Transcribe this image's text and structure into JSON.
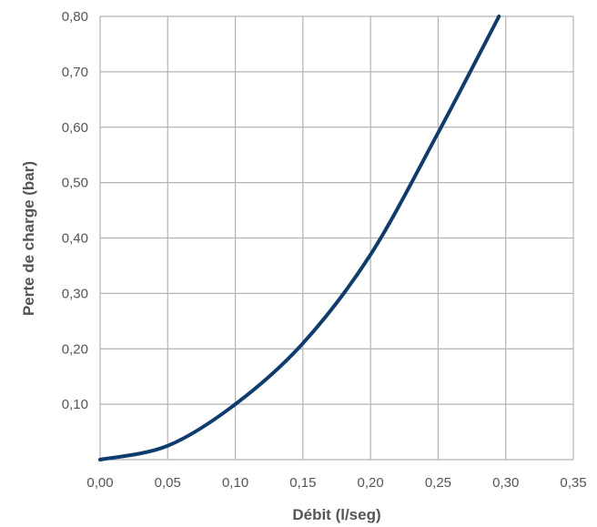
{
  "chart_data": {
    "type": "line",
    "title": "",
    "xlabel": "Débit (l/seg)",
    "ylabel": "Perte de charge (bar)",
    "xlim": [
      0,
      0.35
    ],
    "ylim": [
      0,
      0.8
    ],
    "x_ticks": [
      "0,00",
      "0,05",
      "0,10",
      "0,15",
      "0,20",
      "0,25",
      "0,30",
      "0,35"
    ],
    "y_ticks": [
      "0,10",
      "0,20",
      "0,30",
      "0,40",
      "0,50",
      "0,60",
      "0,70",
      "0,80"
    ],
    "grid": true,
    "series": [
      {
        "color": "#0d3d6e",
        "x": [
          0.0,
          0.05,
          0.1,
          0.15,
          0.2,
          0.25,
          0.295
        ],
        "y": [
          0.0,
          0.025,
          0.1,
          0.21,
          0.37,
          0.59,
          0.8
        ]
      }
    ],
    "colors": {
      "line": "#0d3d6e",
      "grid": "#b3b3b3",
      "text": "#555555"
    }
  }
}
